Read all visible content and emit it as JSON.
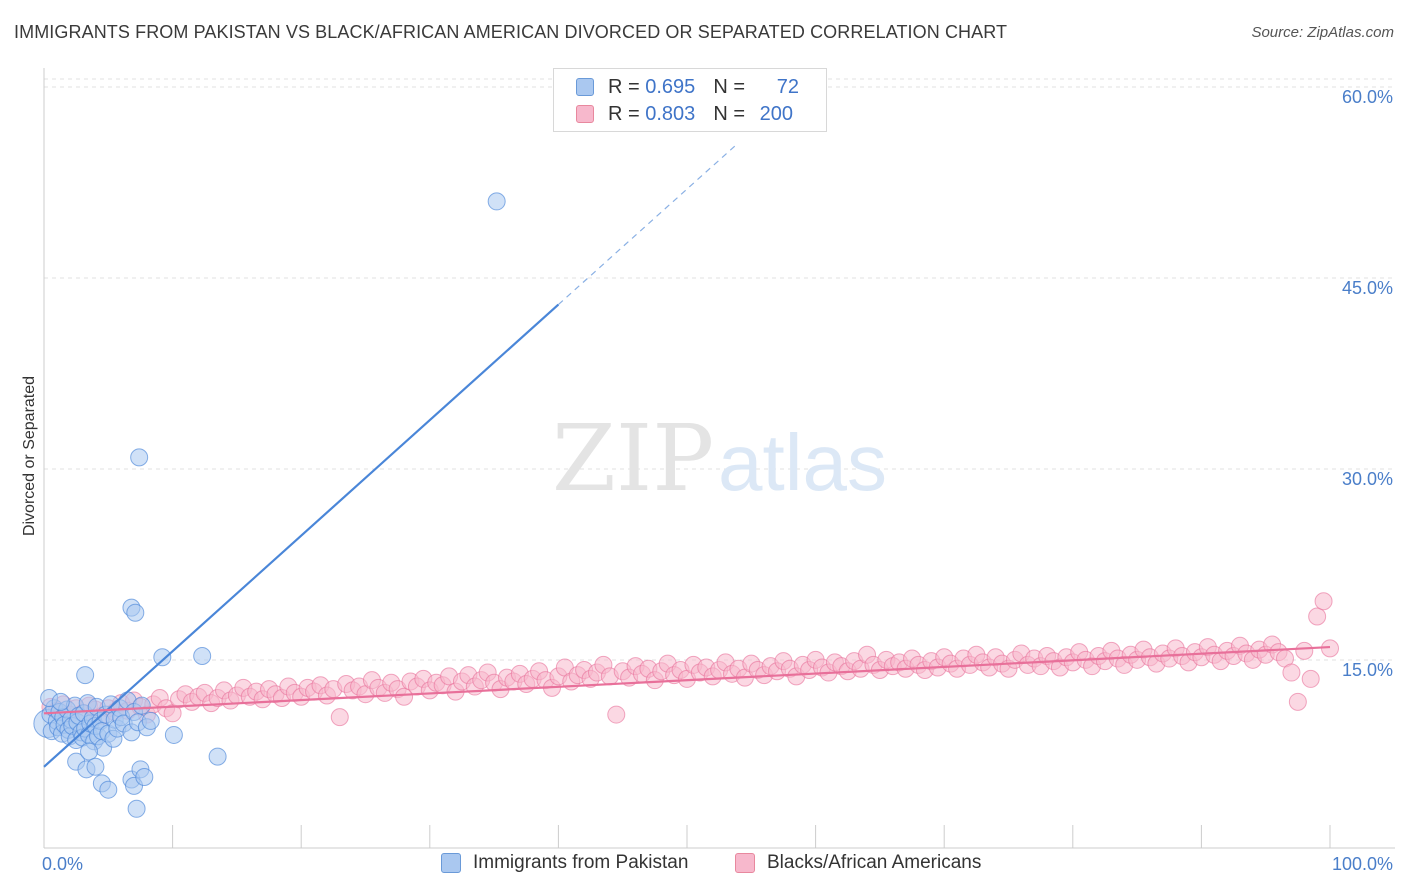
{
  "title": "IMMIGRANTS FROM PAKISTAN VS BLACK/AFRICAN AMERICAN DIVORCED OR SEPARATED CORRELATION CHART",
  "source": "Source: ZipAtlas.com",
  "watermark": {
    "zip": "ZIP",
    "atlas": "atlas"
  },
  "legend": {
    "rows": [
      {
        "r_label": "R =",
        "r_value": "0.695",
        "n_label": "N =",
        "n_value": "72",
        "color": "#aac8f0"
      },
      {
        "r_label": "R =",
        "r_value": "0.803",
        "n_label": "N =",
        "n_value": "200",
        "color": "#f7b8cc"
      }
    ]
  },
  "bottom_legend": [
    "Immigrants from Pakistan",
    "Blacks/African Americans"
  ],
  "chart_data": {
    "type": "scatter",
    "title": "IMMIGRANTS FROM PAKISTAN VS BLACK/AFRICAN AMERICAN DIVORCED OR SEPARATED CORRELATION CHART",
    "ylabel": "Divorced or Separated",
    "xlabel": "",
    "xlim": [
      0,
      100
    ],
    "ylim": [
      0,
      60
    ],
    "x_tick_labels": [
      "0.0%",
      "100.0%"
    ],
    "y_tick_labels": [
      "15.0%",
      "30.0%",
      "45.0%",
      "60.0%"
    ],
    "y_ticks": [
      15,
      30,
      45,
      60
    ],
    "grid": true,
    "legend_position": "top-center",
    "colors": {
      "blue": "#4a86d8",
      "blue_fill": "#aac8f0",
      "pink": "#e8709a",
      "pink_fill": "#f7b8cc"
    },
    "series": [
      {
        "name": "Immigrants from Pakistan",
        "r": 0.695,
        "n": 72,
        "trend": {
          "x": [
            0,
            40
          ],
          "y": [
            7.4,
            43.7
          ],
          "dashed_to": [
            54,
            56.4
          ]
        },
        "points": [
          [
            0.3,
            10.8
          ],
          [
            0.5,
            11.5
          ],
          [
            0.6,
            10.2
          ],
          [
            0.8,
            12.0
          ],
          [
            1.0,
            11.0
          ],
          [
            1.1,
            10.5
          ],
          [
            1.2,
            11.7
          ],
          [
            1.4,
            10.0
          ],
          [
            1.5,
            11.3
          ],
          [
            1.6,
            10.7
          ],
          [
            1.8,
            11.9
          ],
          [
            1.9,
            10.3
          ],
          [
            2.0,
            9.8
          ],
          [
            2.1,
            11.1
          ],
          [
            2.2,
            10.6
          ],
          [
            2.4,
            12.2
          ],
          [
            2.5,
            9.5
          ],
          [
            2.6,
            10.9
          ],
          [
            2.7,
            11.4
          ],
          [
            2.9,
            10.1
          ],
          [
            3.0,
            9.7
          ],
          [
            3.1,
            11.6
          ],
          [
            3.2,
            10.4
          ],
          [
            3.4,
            12.4
          ],
          [
            3.5,
            9.9
          ],
          [
            3.6,
            10.8
          ],
          [
            3.8,
            11.2
          ],
          [
            3.9,
            9.4
          ],
          [
            4.0,
            10.6
          ],
          [
            4.1,
            12.1
          ],
          [
            4.2,
            9.8
          ],
          [
            4.4,
            11.0
          ],
          [
            4.5,
            10.2
          ],
          [
            4.6,
            8.9
          ],
          [
            4.8,
            11.5
          ],
          [
            5.0,
            10.0
          ],
          [
            5.2,
            12.3
          ],
          [
            5.4,
            9.6
          ],
          [
            5.5,
            11.1
          ],
          [
            5.7,
            10.4
          ],
          [
            5.9,
            12.0
          ],
          [
            6.0,
            11.3
          ],
          [
            6.2,
            10.8
          ],
          [
            6.5,
            12.6
          ],
          [
            6.8,
            10.1
          ],
          [
            7.0,
            11.7
          ],
          [
            7.3,
            10.9
          ],
          [
            7.6,
            12.2
          ],
          [
            8.0,
            10.5
          ],
          [
            8.3,
            11.0
          ],
          [
            3.2,
            14.6
          ],
          [
            2.5,
            7.8
          ],
          [
            3.3,
            7.2
          ],
          [
            3.5,
            8.6
          ],
          [
            4.0,
            7.4
          ],
          [
            4.5,
            6.1
          ],
          [
            5.0,
            5.6
          ],
          [
            6.8,
            6.4
          ],
          [
            7.0,
            5.9
          ],
          [
            7.5,
            7.2
          ],
          [
            7.8,
            6.6
          ],
          [
            7.2,
            4.1
          ],
          [
            6.8,
            19.9
          ],
          [
            7.1,
            19.5
          ],
          [
            9.2,
            16.0
          ],
          [
            12.3,
            16.1
          ],
          [
            10.1,
            9.9
          ],
          [
            13.5,
            8.2
          ],
          [
            7.4,
            31.7
          ],
          [
            35.2,
            51.8
          ],
          [
            0.4,
            12.8
          ],
          [
            1.3,
            12.5
          ]
        ]
      },
      {
        "name": "Blacks/African Americans",
        "r": 0.803,
        "n": 200,
        "trend": {
          "x": [
            0,
            100
          ],
          "y": [
            11.6,
            16.8
          ]
        },
        "points": [
          [
            0.5,
            12.1
          ],
          [
            1,
            11.8
          ],
          [
            1.5,
            12.3
          ],
          [
            2,
            11.5
          ],
          [
            2.5,
            12.0
          ],
          [
            3,
            11.6
          ],
          [
            3.5,
            12.2
          ],
          [
            4,
            11.9
          ],
          [
            4.5,
            11.4
          ],
          [
            5,
            12.0
          ],
          [
            5.5,
            11.7
          ],
          [
            6,
            12.4
          ],
          [
            6.5,
            11.8
          ],
          [
            7,
            12.6
          ],
          [
            7.5,
            12.1
          ],
          [
            8,
            11.5
          ],
          [
            8.5,
            12.3
          ],
          [
            9,
            12.8
          ],
          [
            9.5,
            12.0
          ],
          [
            10,
            11.6
          ],
          [
            10.5,
            12.7
          ],
          [
            11,
            13.1
          ],
          [
            11.5,
            12.5
          ],
          [
            12,
            12.9
          ],
          [
            12.5,
            13.2
          ],
          [
            13,
            12.4
          ],
          [
            13.5,
            12.8
          ],
          [
            14,
            13.4
          ],
          [
            14.5,
            12.6
          ],
          [
            15,
            13.0
          ],
          [
            15.5,
            13.6
          ],
          [
            16,
            12.9
          ],
          [
            16.5,
            13.3
          ],
          [
            17,
            12.7
          ],
          [
            17.5,
            13.5
          ],
          [
            18,
            13.1
          ],
          [
            18.5,
            12.8
          ],
          [
            19,
            13.7
          ],
          [
            19.5,
            13.2
          ],
          [
            20,
            12.9
          ],
          [
            20.5,
            13.6
          ],
          [
            21,
            13.3
          ],
          [
            21.5,
            13.8
          ],
          [
            22,
            13.0
          ],
          [
            22.5,
            13.5
          ],
          [
            23,
            11.3
          ],
          [
            23.5,
            13.9
          ],
          [
            24,
            13.4
          ],
          [
            24.5,
            13.7
          ],
          [
            25,
            13.1
          ],
          [
            25.5,
            14.2
          ],
          [
            26,
            13.6
          ],
          [
            26.5,
            13.2
          ],
          [
            27,
            14.0
          ],
          [
            27.5,
            13.5
          ],
          [
            28,
            12.9
          ],
          [
            28.5,
            14.1
          ],
          [
            29,
            13.7
          ],
          [
            29.5,
            14.3
          ],
          [
            30,
            13.4
          ],
          [
            30.5,
            14.0
          ],
          [
            31,
            13.8
          ],
          [
            31.5,
            14.5
          ],
          [
            32,
            13.3
          ],
          [
            32.5,
            14.1
          ],
          [
            33,
            14.6
          ],
          [
            33.5,
            13.7
          ],
          [
            34,
            14.2
          ],
          [
            34.5,
            14.8
          ],
          [
            35,
            14.0
          ],
          [
            35.5,
            13.5
          ],
          [
            36,
            14.4
          ],
          [
            36.5,
            14.1
          ],
          [
            37,
            14.7
          ],
          [
            37.5,
            13.9
          ],
          [
            38,
            14.3
          ],
          [
            38.5,
            14.9
          ],
          [
            39,
            14.2
          ],
          [
            39.5,
            13.6
          ],
          [
            40,
            14.5
          ],
          [
            40.5,
            15.2
          ],
          [
            41,
            14.1
          ],
          [
            41.5,
            14.6
          ],
          [
            42,
            15.0
          ],
          [
            42.5,
            14.3
          ],
          [
            43,
            14.8
          ],
          [
            43.5,
            15.4
          ],
          [
            44,
            14.5
          ],
          [
            44.5,
            11.5
          ],
          [
            45,
            14.9
          ],
          [
            45.5,
            14.4
          ],
          [
            46,
            15.3
          ],
          [
            46.5,
            14.7
          ],
          [
            47,
            15.1
          ],
          [
            47.5,
            14.2
          ],
          [
            48,
            14.9
          ],
          [
            48.5,
            15.5
          ],
          [
            49,
            14.6
          ],
          [
            49.5,
            15.0
          ],
          [
            50,
            14.3
          ],
          [
            50.5,
            15.4
          ],
          [
            51,
            14.8
          ],
          [
            51.5,
            15.2
          ],
          [
            52,
            14.5
          ],
          [
            52.5,
            15.0
          ],
          [
            53,
            15.6
          ],
          [
            53.5,
            14.7
          ],
          [
            54,
            15.1
          ],
          [
            54.5,
            14.4
          ],
          [
            55,
            15.5
          ],
          [
            55.5,
            15.0
          ],
          [
            56,
            14.6
          ],
          [
            56.5,
            15.3
          ],
          [
            57,
            14.9
          ],
          [
            57.5,
            15.7
          ],
          [
            58,
            15.1
          ],
          [
            58.5,
            14.5
          ],
          [
            59,
            15.4
          ],
          [
            59.5,
            15.0
          ],
          [
            60,
            15.8
          ],
          [
            60.5,
            15.2
          ],
          [
            61,
            14.8
          ],
          [
            61.5,
            15.6
          ],
          [
            62,
            15.3
          ],
          [
            62.5,
            14.9
          ],
          [
            63,
            15.7
          ],
          [
            63.5,
            15.1
          ],
          [
            64,
            16.2
          ],
          [
            64.5,
            15.4
          ],
          [
            65,
            15.0
          ],
          [
            65.5,
            15.8
          ],
          [
            66,
            15.3
          ],
          [
            66.5,
            15.6
          ],
          [
            67,
            15.1
          ],
          [
            67.5,
            15.9
          ],
          [
            68,
            15.4
          ],
          [
            68.5,
            15.0
          ],
          [
            69,
            15.7
          ],
          [
            69.5,
            15.2
          ],
          [
            70,
            16.0
          ],
          [
            70.5,
            15.5
          ],
          [
            71,
            15.1
          ],
          [
            71.5,
            15.9
          ],
          [
            72,
            15.4
          ],
          [
            72.5,
            16.2
          ],
          [
            73,
            15.6
          ],
          [
            73.5,
            15.2
          ],
          [
            74,
            16.0
          ],
          [
            74.5,
            15.5
          ],
          [
            75,
            15.1
          ],
          [
            75.5,
            15.8
          ],
          [
            76,
            16.3
          ],
          [
            76.5,
            15.4
          ],
          [
            77,
            15.9
          ],
          [
            77.5,
            15.3
          ],
          [
            78,
            16.1
          ],
          [
            78.5,
            15.7
          ],
          [
            79,
            15.2
          ],
          [
            79.5,
            16.0
          ],
          [
            80,
            15.6
          ],
          [
            80.5,
            16.4
          ],
          [
            81,
            15.8
          ],
          [
            81.5,
            15.3
          ],
          [
            82,
            16.1
          ],
          [
            82.5,
            15.7
          ],
          [
            83,
            16.5
          ],
          [
            83.5,
            15.9
          ],
          [
            84,
            15.4
          ],
          [
            84.5,
            16.2
          ],
          [
            85,
            15.8
          ],
          [
            85.5,
            16.6
          ],
          [
            86,
            16.0
          ],
          [
            86.5,
            15.5
          ],
          [
            87,
            16.3
          ],
          [
            87.5,
            15.9
          ],
          [
            88,
            16.7
          ],
          [
            88.5,
            16.1
          ],
          [
            89,
            15.6
          ],
          [
            89.5,
            16.4
          ],
          [
            90,
            16.0
          ],
          [
            90.5,
            16.8
          ],
          [
            91,
            16.2
          ],
          [
            91.5,
            15.7
          ],
          [
            92,
            16.5
          ],
          [
            92.5,
            16.1
          ],
          [
            93,
            16.9
          ],
          [
            93.5,
            16.3
          ],
          [
            94,
            15.8
          ],
          [
            94.5,
            16.6
          ],
          [
            95,
            16.2
          ],
          [
            95.5,
            17.0
          ],
          [
            96,
            16.4
          ],
          [
            96.5,
            15.9
          ],
          [
            97,
            14.8
          ],
          [
            97.5,
            12.5
          ],
          [
            98,
            16.5
          ],
          [
            98.5,
            14.3
          ],
          [
            99,
            19.2
          ],
          [
            99.5,
            20.4
          ],
          [
            100,
            16.7
          ]
        ]
      }
    ]
  }
}
